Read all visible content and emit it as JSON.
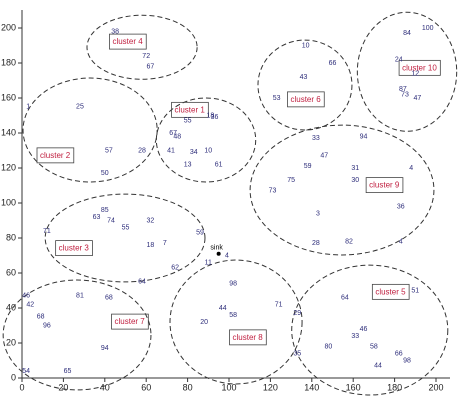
{
  "chart_data": {
    "type": "scatter",
    "xlim": [
      0,
      200
    ],
    "ylim": [
      0,
      200
    ],
    "xticks": [
      0,
      20,
      40,
      60,
      80,
      100,
      120,
      140,
      160,
      180,
      200
    ],
    "yticks": [
      0,
      20,
      40,
      60,
      80,
      100,
      120,
      140,
      160,
      180,
      200
    ],
    "color": "#2d2d7a",
    "x": [
      45,
      62,
      60,
      3,
      28,
      42,
      58,
      40,
      80,
      91,
      93,
      75,
      73,
      83,
      90,
      95,
      80,
      72,
      137,
      136,
      123,
      150,
      196,
      186,
      182,
      190,
      184,
      191,
      185,
      142,
      146,
      138,
      165,
      161,
      161,
      188,
      130,
      121,
      143,
      142,
      158,
      183,
      183,
      12,
      40,
      36,
      43,
      50,
      62,
      62,
      69,
      86,
      74,
      2,
      4,
      9,
      28,
      42,
      58,
      12,
      40,
      22,
      2,
      90,
      99,
      102,
      97,
      102,
      88,
      124,
      133,
      156,
      190,
      165,
      148,
      161,
      170,
      182,
      172,
      186,
      133
    ],
    "values": [
      198,
      178,
      184,
      155,
      155,
      130,
      130,
      117,
      147,
      150,
      149,
      138,
      140,
      129,
      130,
      122,
      122,
      130,
      190,
      172,
      160,
      180,
      200,
      197,
      182,
      174,
      165,
      160,
      162,
      137,
      127,
      121,
      138,
      120,
      113,
      120,
      113,
      107,
      94,
      77,
      78,
      78,
      98,
      84,
      96,
      92,
      90,
      86,
      90,
      76,
      77,
      83,
      63,
      47,
      42,
      35,
      47,
      46,
      55,
      30,
      17,
      4,
      4,
      66,
      70,
      54,
      40,
      36,
      32,
      42,
      37,
      46,
      50,
      28,
      18,
      24,
      18,
      14,
      7,
      10,
      14
    ],
    "point_labels": [
      "38",
      "67",
      "72",
      "1",
      "25",
      "57",
      "28",
      "50",
      "55",
      "18",
      "36",
      "48",
      "67",
      "34",
      "10",
      "61",
      "13",
      "41",
      "10",
      "43",
      "53",
      "66",
      "100",
      "84",
      "24",
      "12",
      "87",
      "47",
      "73",
      "33",
      "47",
      "59",
      "94",
      "31",
      "30",
      "4",
      "75",
      "73",
      "3",
      "28",
      "82",
      "4",
      "36",
      "71",
      "85",
      "63",
      "74",
      "55",
      "32",
      "18",
      "7",
      "59",
      "62",
      "46",
      "42",
      "68",
      "81",
      "68",
      "64",
      "96",
      "94",
      "65",
      "54",
      "11",
      "4",
      "98",
      "44",
      "58",
      "20",
      "71",
      "29",
      "64",
      "51",
      "46",
      "80",
      "33",
      "58",
      "66",
      "44",
      "98",
      "35"
    ],
    "sink": {
      "x": 95,
      "y": 71,
      "label": "sink"
    },
    "clusters": [
      {
        "label": "cluster 4",
        "cx": 58,
        "cy": 189,
        "rx": 26.6,
        "ry": 18.3,
        "lx": 51,
        "ly": 192
      },
      {
        "label": "cluster 2",
        "cx": 32.9,
        "cy": 141.7,
        "rx": 32.4,
        "ry": 29.7,
        "lx": 16,
        "ly": 127
      },
      {
        "label": "cluster 1",
        "cx": 88.9,
        "cy": 136,
        "rx": 24,
        "ry": 24,
        "lx": 81,
        "ly": 153
      },
      {
        "label": "cluster 6",
        "cx": 136.7,
        "cy": 167.4,
        "rx": 22.7,
        "ry": 25.7,
        "lx": 137,
        "ly": 159
      },
      {
        "label": "cluster 10",
        "cx": 186,
        "cy": 175,
        "rx": 24,
        "ry": 34,
        "lx": 192,
        "ly": 177
      },
      {
        "label": "cluster 9",
        "cx": 154.6,
        "cy": 107.4,
        "rx": 44.4,
        "ry": 37.1,
        "lx": 175,
        "ly": 110
      },
      {
        "label": "cluster 3",
        "cx": 49.8,
        "cy": 80,
        "rx": 38.6,
        "ry": 25.1,
        "lx": 25,
        "ly": 74
      },
      {
        "label": "cluster 7",
        "cx": 26.6,
        "cy": 24.6,
        "rx": 35.7,
        "ry": 31.4,
        "lx": 52,
        "ly": 32
      },
      {
        "label": "cluster 8",
        "cx": 103.4,
        "cy": 32,
        "rx": 31.9,
        "ry": 35.4,
        "lx": 109,
        "ly": 23
      },
      {
        "label": "cluster 5",
        "cx": 168,
        "cy": 27.4,
        "rx": 37.7,
        "ry": 37.1,
        "lx": 178,
        "ly": 49
      }
    ]
  }
}
